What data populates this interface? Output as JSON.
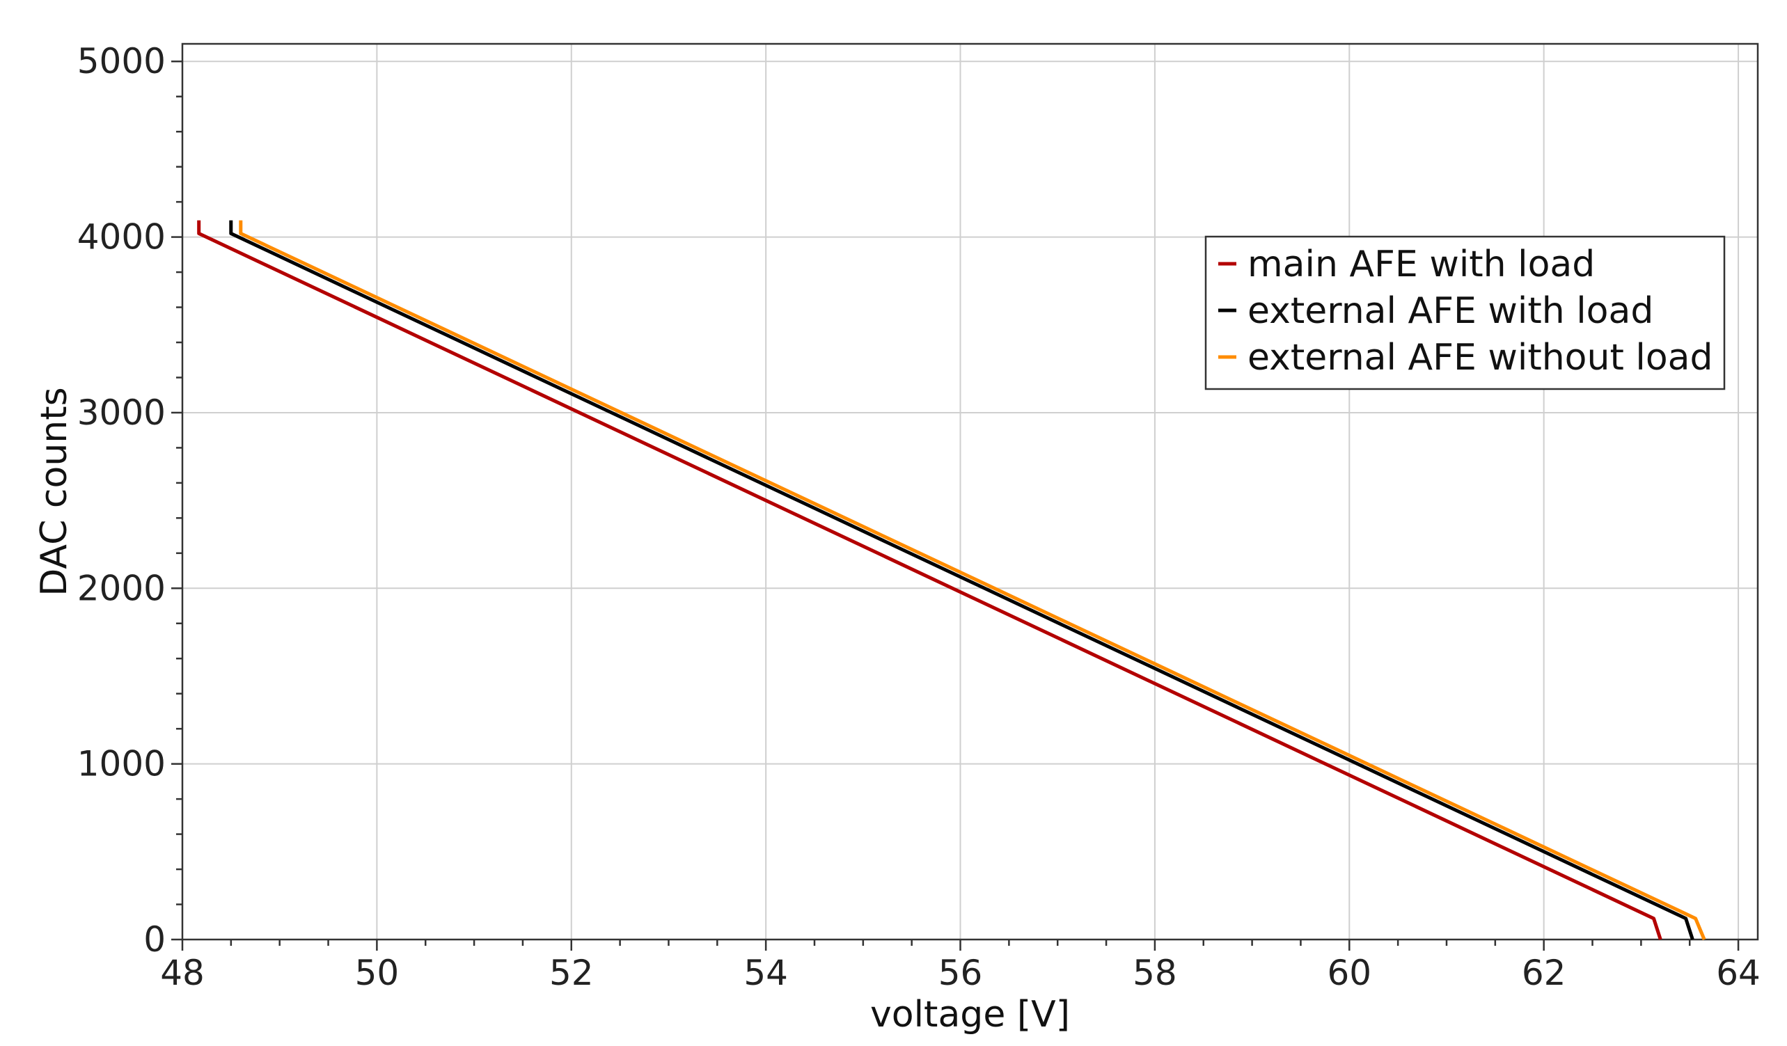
{
  "chart_data": {
    "type": "line",
    "xlabel": "voltage [V]",
    "ylabel": "DAC counts",
    "xlim": [
      48,
      64.2
    ],
    "ylim": [
      0,
      5100
    ],
    "xticks": [
      48,
      50,
      52,
      54,
      56,
      58,
      60,
      62,
      64
    ],
    "yticks": [
      0,
      1000,
      2000,
      3000,
      4000,
      5000
    ],
    "grid": true,
    "legend_position": "top-right",
    "series": [
      {
        "name": "main AFE with load",
        "color": "#b30000",
        "points": [
          [
            48.17,
            4095
          ],
          [
            48.17,
            4020
          ],
          [
            63.13,
            120
          ],
          [
            63.2,
            0
          ]
        ]
      },
      {
        "name": "external AFE with load",
        "color": "#000000",
        "points": [
          [
            48.5,
            4095
          ],
          [
            48.5,
            4020
          ],
          [
            63.46,
            120
          ],
          [
            63.53,
            0
          ]
        ]
      },
      {
        "name": "external AFE without load",
        "color": "#ff8c00",
        "points": [
          [
            48.6,
            4095
          ],
          [
            48.6,
            4020
          ],
          [
            63.56,
            120
          ],
          [
            63.65,
            0
          ]
        ]
      }
    ]
  }
}
